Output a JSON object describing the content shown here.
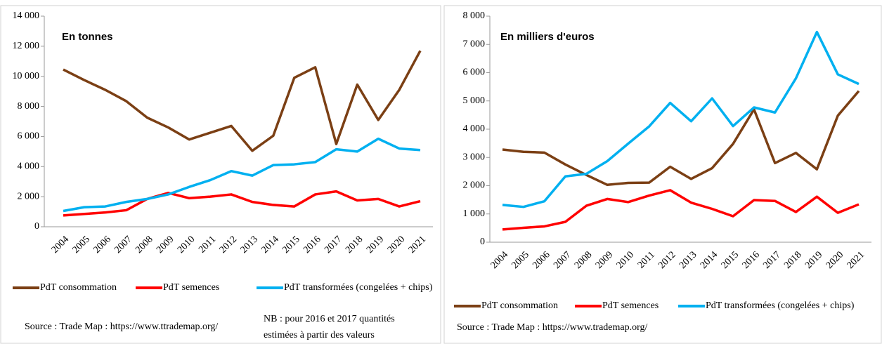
{
  "chart_data": [
    {
      "type": "line",
      "annotation": "En tonnes",
      "categories": [
        "2004",
        "2005",
        "2006",
        "2007",
        "2008",
        "2009",
        "2010",
        "2011",
        "2012",
        "2013",
        "2014",
        "2015",
        "2016",
        "2017",
        "2018",
        "2019",
        "2020",
        "2021"
      ],
      "series": [
        {
          "name": "PdT consommation",
          "color": "#7b3f14",
          "values": [
            10450,
            9750,
            9100,
            8350,
            7250,
            6600,
            5800,
            6250,
            6700,
            5050,
            6050,
            9900,
            10600,
            5500,
            9450,
            7100,
            9100,
            11700
          ]
        },
        {
          "name": "PdT semences",
          "color": "#ff0000",
          "values": [
            750,
            850,
            950,
            1100,
            1850,
            2250,
            1900,
            2000,
            2150,
            1650,
            1450,
            1350,
            2150,
            2350,
            1750,
            1850,
            1350,
            1700
          ]
        },
        {
          "name": "PdT transformées (congelées + chips)",
          "color": "#00b0f0",
          "values": [
            1050,
            1300,
            1350,
            1650,
            1850,
            2150,
            2650,
            3100,
            3700,
            3400,
            4100,
            4150,
            4300,
            5150,
            5000,
            5850,
            5200,
            5100
          ]
        }
      ],
      "ylim": [
        0,
        14000
      ],
      "yticks": [
        0,
        {
          "value": 2000,
          "label": "2 000"
        },
        {
          "value": 4000,
          "label": "4 000"
        },
        {
          "value": 6000,
          "label": "6 000"
        },
        {
          "value": 8000,
          "label": "8 000"
        },
        {
          "value": 10000,
          "label": "10 000"
        },
        {
          "value": 12000,
          "label": "12 000"
        },
        {
          "value": 14000,
          "label": "14 000"
        }
      ],
      "grid": false,
      "source": "Source : Trade Map : https://www.ttrademap.org/",
      "note": [
        "NB : pour 2016 et 2017 quantités",
        "estimées à partir des valeurs"
      ]
    },
    {
      "type": "line",
      "annotation": "En milliers d'euros",
      "categories": [
        "2004",
        "2005",
        "2006",
        "2007",
        "2008",
        "2009",
        "2010",
        "2011",
        "2012",
        "2013",
        "2014",
        "2015",
        "2016",
        "2017",
        "2018",
        "2019",
        "2020",
        "2021"
      ],
      "series": [
        {
          "name": "PdT consommation",
          "color": "#7b3f14",
          "values": [
            3280,
            3200,
            3170,
            2750,
            2380,
            2030,
            2100,
            2110,
            2670,
            2240,
            2620,
            3480,
            4700,
            2800,
            3160,
            2580,
            4480,
            5350
          ]
        },
        {
          "name": "PdT semences",
          "color": "#ff0000",
          "values": [
            450,
            510,
            560,
            720,
            1290,
            1530,
            1420,
            1650,
            1840,
            1400,
            1180,
            920,
            1490,
            1460,
            1070,
            1610,
            1040,
            1340
          ]
        },
        {
          "name": "PdT transformées (congelées + chips)",
          "color": "#00b0f0",
          "values": [
            1320,
            1250,
            1450,
            2330,
            2420,
            2870,
            3490,
            4100,
            4930,
            4280,
            5090,
            4110,
            4770,
            4590,
            5800,
            7440,
            5940,
            5600
          ]
        }
      ],
      "ylim": [
        0,
        8000
      ],
      "yticks": [
        0,
        {
          "value": 1000,
          "label": "1 000"
        },
        {
          "value": 2000,
          "label": "2 000"
        },
        {
          "value": 3000,
          "label": "3 000"
        },
        {
          "value": 4000,
          "label": "4 000"
        },
        {
          "value": 5000,
          "label": "5 000"
        },
        {
          "value": 6000,
          "label": "6 000"
        },
        {
          "value": 7000,
          "label": "7 000"
        },
        {
          "value": 8000,
          "label": "8 000"
        }
      ],
      "grid": false,
      "source": "Source : Trade Map : https://www.trademap.org/"
    }
  ]
}
